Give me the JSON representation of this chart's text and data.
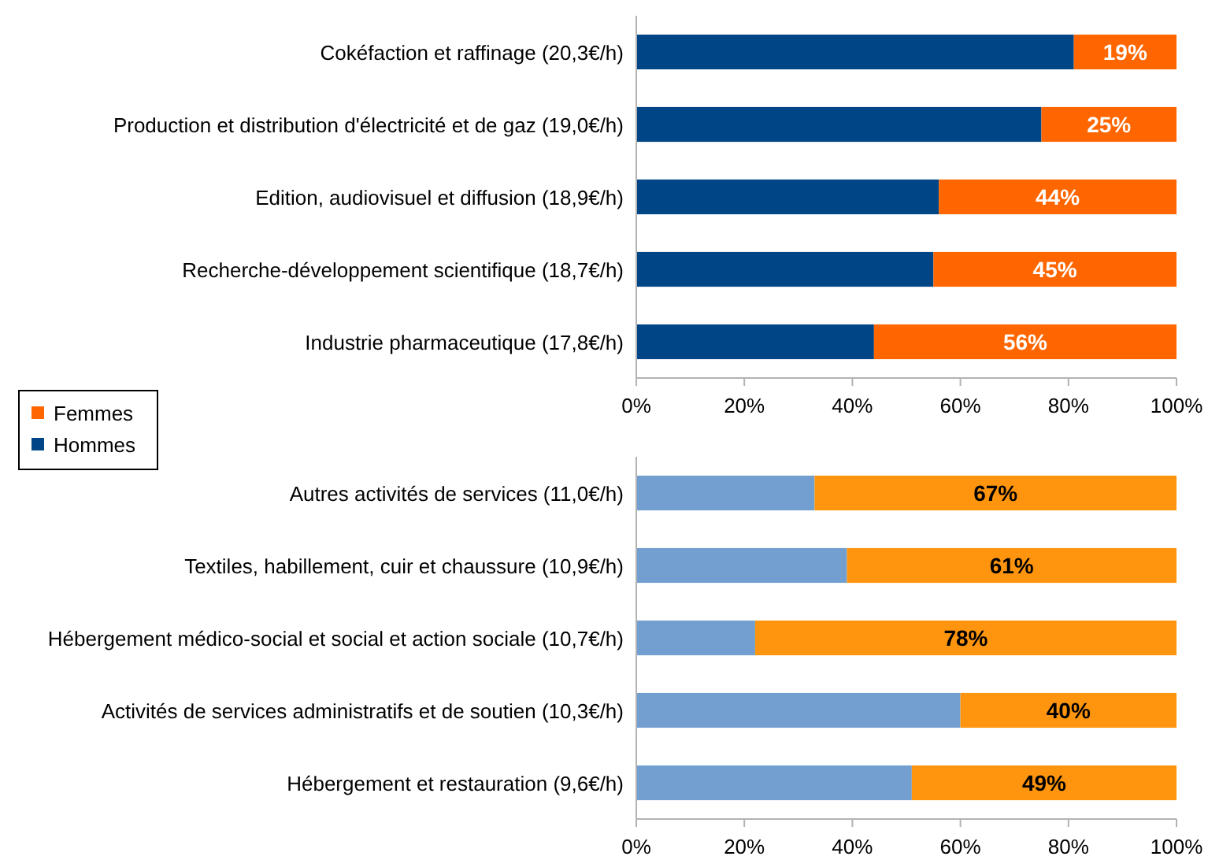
{
  "chart_data": [
    {
      "type": "bar",
      "orientation": "horizontal",
      "stacked": true,
      "categories": [
        "Cokéfaction et raffinage (20,3€/h)",
        "Production et distribution d'électricité et de gaz (19,0€/h)",
        "Edition, audiovisuel et diffusion (18,9€/h)",
        "Recherche-développement scientifique (18,7€/h)",
        "Industrie pharmaceutique (17,8€/h)"
      ],
      "series": [
        {
          "name": "Hommes",
          "color": "#004586",
          "values": [
            81,
            75,
            56,
            55,
            44
          ]
        },
        {
          "name": "Femmes",
          "color": "#ff6600",
          "values": [
            19,
            25,
            44,
            45,
            56
          ],
          "value_labels": [
            "19%",
            "25%",
            "44%",
            "45%",
            "56%"
          ]
        }
      ],
      "xlim": [
        0,
        100
      ],
      "xticks": [
        {
          "value": 0,
          "label": "0%"
        },
        {
          "value": 20,
          "label": "20%"
        },
        {
          "value": 40,
          "label": "40%"
        },
        {
          "value": 60,
          "label": "60%"
        },
        {
          "value": 80,
          "label": "80%"
        },
        {
          "value": 100,
          "label": "100%"
        }
      ],
      "grid": false,
      "legend": "bottom left"
    },
    {
      "type": "bar",
      "orientation": "horizontal",
      "stacked": true,
      "categories": [
        "Autres activités de services (11,0€/h)",
        "Textiles, habillement, cuir et chaussure (10,9€/h)",
        "Hébergement médico-social et social et action sociale (10,7€/h)",
        "Activités de services administratifs et de soutien (10,3€/h)",
        "Hébergement et restauration (9,6€/h)"
      ],
      "series": [
        {
          "color": "#729fcf",
          "values": [
            33,
            39,
            22,
            60,
            51
          ]
        },
        {
          "color": "#ff950e",
          "values": [
            67,
            61,
            78,
            40,
            49
          ],
          "value_labels": [
            "67%",
            "61%",
            "78%",
            "40%",
            "49%"
          ]
        }
      ],
      "xlim": [
        0,
        100
      ],
      "xticks": [
        {
          "value": 0,
          "label": "0%"
        },
        {
          "value": 20,
          "label": "20%"
        },
        {
          "value": 40,
          "label": "40%"
        },
        {
          "value": 60,
          "label": "60%"
        },
        {
          "value": 80,
          "label": "80%"
        },
        {
          "value": 100,
          "label": "100%"
        }
      ],
      "grid": false,
      "legend": false
    }
  ]
}
